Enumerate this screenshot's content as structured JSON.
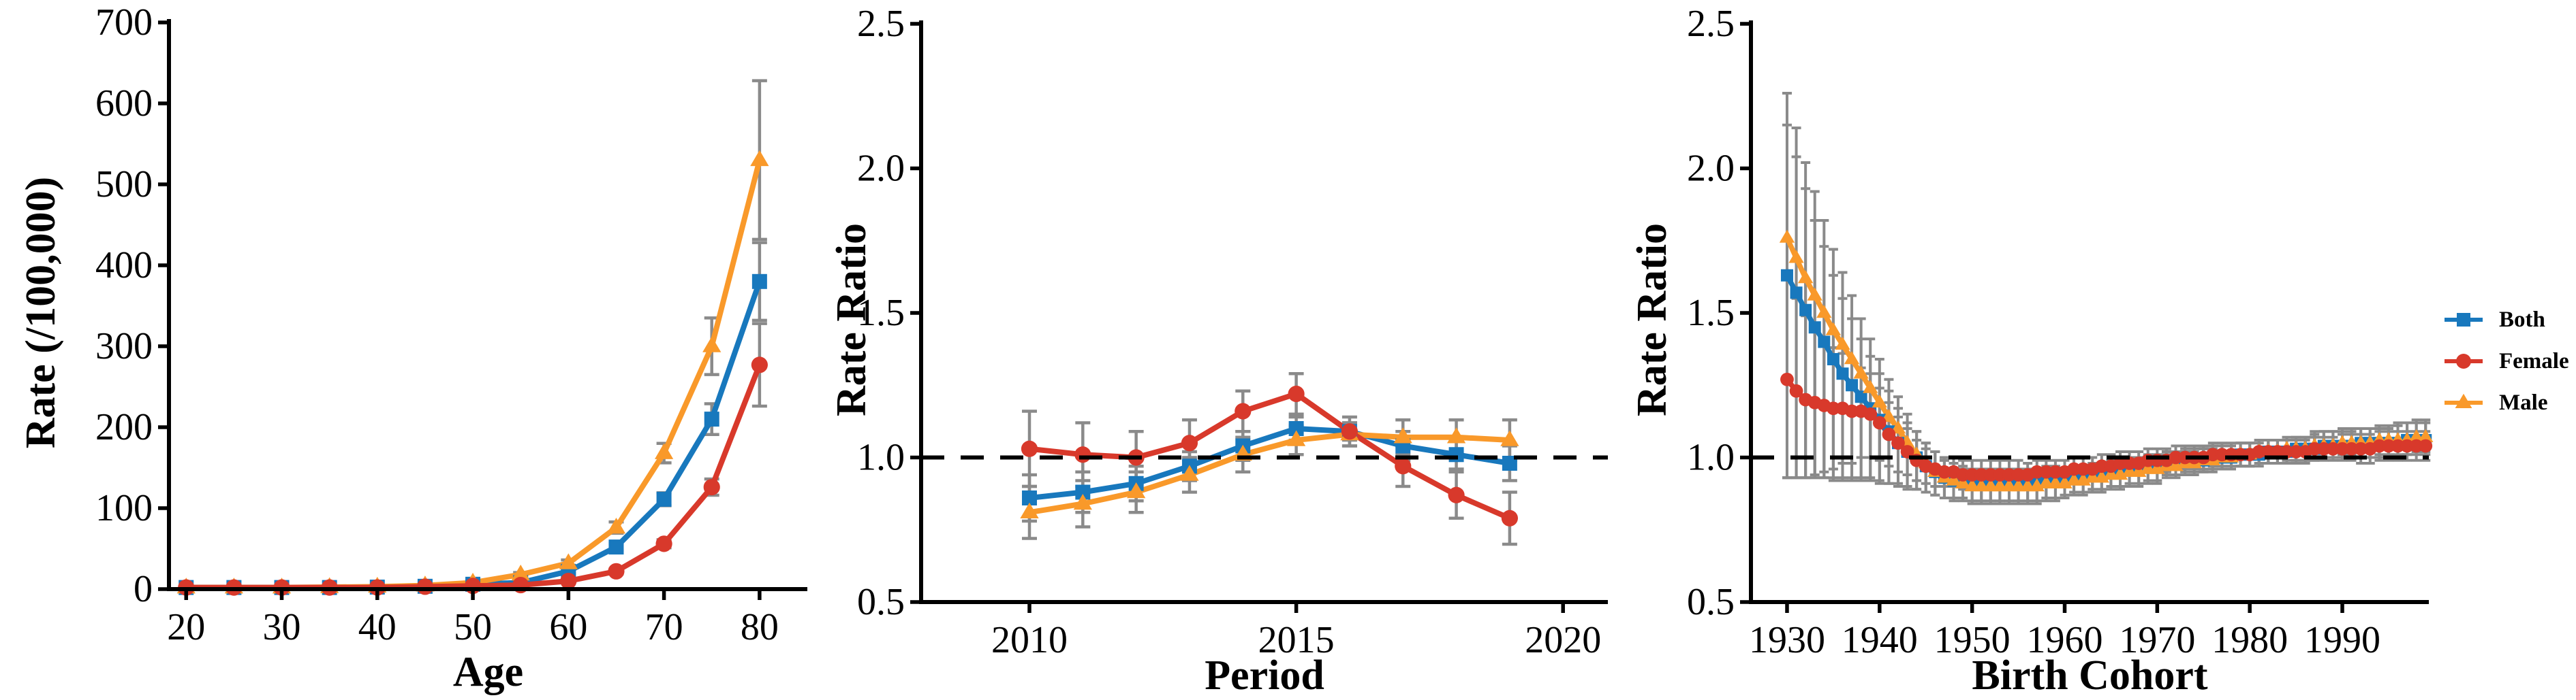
{
  "figure": {
    "kind": "age-period-cohort line figure",
    "background": "#ffffff"
  },
  "colors": {
    "both": "#1878bd",
    "female": "#d8392b",
    "male": "#f9992a",
    "error_bar": "#8a8a8a",
    "axis": "#000000",
    "refline": "#000000"
  },
  "legend": {
    "items": [
      {
        "label": "Both",
        "marker": "square",
        "color_key": "both"
      },
      {
        "label": "Female",
        "marker": "circle",
        "color_key": "female"
      },
      {
        "label": "Male",
        "marker": "triangle",
        "color_key": "male"
      }
    ]
  },
  "chart_data": [
    {
      "id": "age",
      "type": "line",
      "xlabel": "Age",
      "ylabel": "Rate (/100,000)",
      "xlim": [
        18.2,
        85.0
      ],
      "ylim": [
        0,
        700
      ],
      "xticks": [
        20,
        30,
        40,
        50,
        60,
        70,
        80
      ],
      "xtick_labels": [
        "20",
        "30",
        "40",
        "50",
        "60",
        "70",
        "80"
      ],
      "yticks": [
        0,
        100,
        200,
        300,
        400,
        500,
        600,
        700
      ],
      "ytick_labels": [
        "0",
        "100",
        "200",
        "300",
        "400",
        "500",
        "600",
        "700"
      ],
      "grid": false,
      "refline": null,
      "x": [
        20,
        25,
        30,
        35,
        40,
        45,
        50,
        55,
        60,
        65,
        70,
        75,
        80
      ],
      "series": [
        {
          "name": "Both",
          "marker": "square",
          "color_key": "both",
          "values": [
            2,
            2,
            2,
            2,
            2.5,
            3.5,
            6,
            8,
            22,
            52,
            111,
            210,
            380
          ],
          "err": [
            0.5,
            0.5,
            0.5,
            0.5,
            0.5,
            0.8,
            1,
            1.5,
            2.5,
            4,
            8,
            19,
            48
          ]
        },
        {
          "name": "Male",
          "marker": "triangle",
          "color_key": "male",
          "values": [
            2,
            2,
            2,
            2.5,
            3,
            4.5,
            8,
            18,
            32,
            76,
            168,
            300,
            530
          ],
          "err": [
            0.5,
            0.5,
            0.5,
            0.5,
            0.5,
            1,
            1.5,
            2.5,
            4,
            7,
            12,
            35,
            98
          ]
        },
        {
          "name": "Female",
          "marker": "circle",
          "color_key": "female",
          "values": [
            2,
            2,
            2,
            2,
            2,
            3,
            4,
            5,
            10,
            22,
            56,
            126,
            277
          ],
          "err": [
            0.4,
            0.4,
            0.4,
            0.4,
            0.4,
            0.6,
            0.8,
            1,
            1.5,
            3,
            5,
            10,
            51
          ]
        }
      ]
    },
    {
      "id": "period",
      "type": "line",
      "xlabel": "Period",
      "ylabel": "Rate Ratio",
      "xlim": [
        2007.97,
        2020.84
      ],
      "ylim": [
        0.5,
        2.5
      ],
      "xticks": [
        2010,
        2015,
        2020
      ],
      "xtick_labels": [
        "2010",
        "2015",
        "2020"
      ],
      "yticks": [
        0.5,
        1.0,
        1.5,
        2.0,
        2.5
      ],
      "ytick_labels": [
        "0.5",
        "1.0",
        "1.5",
        "2.0",
        "2.5"
      ],
      "grid": false,
      "refline": 1.0,
      "x": [
        2010,
        2011,
        2012,
        2013,
        2014,
        2015,
        2016,
        2017,
        2018,
        2019
      ],
      "series": [
        {
          "name": "Both",
          "marker": "square",
          "color_key": "both",
          "values": [
            0.86,
            0.88,
            0.91,
            0.97,
            1.04,
            1.1,
            1.09,
            1.04,
            1.01,
            0.98
          ],
          "err": [
            0.08,
            0.07,
            0.06,
            0.05,
            0.05,
            0.04,
            0.03,
            0.05,
            0.05,
            0.06
          ]
        },
        {
          "name": "Male",
          "marker": "triangle",
          "color_key": "male",
          "values": [
            0.81,
            0.84,
            0.88,
            0.94,
            1.01,
            1.06,
            1.08,
            1.07,
            1.07,
            1.06
          ],
          "err": [
            0.09,
            0.08,
            0.07,
            0.06,
            0.06,
            0.05,
            0.04,
            0.06,
            0.06,
            0.07
          ]
        },
        {
          "name": "Female",
          "marker": "circle",
          "color_key": "female",
          "values": [
            1.03,
            1.01,
            1.0,
            1.05,
            1.16,
            1.22,
            1.09,
            0.97,
            0.87,
            0.79
          ],
          "err": [
            0.13,
            0.11,
            0.09,
            0.08,
            0.07,
            0.07,
            0.05,
            0.07,
            0.08,
            0.09
          ]
        }
      ]
    },
    {
      "id": "cohort",
      "type": "line",
      "xlabel": "Birth Cohort",
      "ylabel": "Rate Ratio",
      "xlim": [
        1926.1,
        1999.35
      ],
      "ylim": [
        0.5,
        2.5
      ],
      "xticks": [
        1930,
        1940,
        1950,
        1960,
        1970,
        1980,
        1990
      ],
      "xtick_labels": [
        "1930",
        "1940",
        "1950",
        "1960",
        "1970",
        "1980",
        "1990"
      ],
      "yticks": [
        0.5,
        1.0,
        1.5,
        2.0,
        2.5
      ],
      "ytick_labels": [
        "0.5",
        "1.0",
        "1.5",
        "2.0",
        "2.5"
      ],
      "grid": false,
      "refline": 1.0,
      "x": [
        1930,
        1931,
        1932,
        1933,
        1934,
        1935,
        1936,
        1937,
        1938,
        1939,
        1940,
        1941,
        1942,
        1943,
        1944,
        1945,
        1946,
        1947,
        1948,
        1949,
        1950,
        1951,
        1952,
        1953,
        1954,
        1955,
        1956,
        1957,
        1958,
        1959,
        1960,
        1961,
        1962,
        1963,
        1964,
        1965,
        1966,
        1967,
        1968,
        1969,
        1970,
        1971,
        1972,
        1973,
        1974,
        1975,
        1976,
        1977,
        1978,
        1979,
        1980,
        1981,
        1982,
        1983,
        1984,
        1985,
        1986,
        1987,
        1988,
        1989,
        1990,
        1991,
        1992,
        1993,
        1994,
        1995,
        1996,
        1997,
        1998,
        1999
      ],
      "series": [
        {
          "name": "Both",
          "marker": "square",
          "color_key": "both",
          "values": [
            1.63,
            1.57,
            1.51,
            1.45,
            1.4,
            1.34,
            1.29,
            1.25,
            1.21,
            1.17,
            1.13,
            1.09,
            1.05,
            1.02,
            1.0,
            0.97,
            0.95,
            0.93,
            0.92,
            0.92,
            0.91,
            0.91,
            0.91,
            0.91,
            0.91,
            0.91,
            0.91,
            0.91,
            0.92,
            0.92,
            0.92,
            0.93,
            0.93,
            0.94,
            0.94,
            0.95,
            0.95,
            0.96,
            0.96,
            0.97,
            0.97,
            0.98,
            0.98,
            0.99,
            0.99,
            0.99,
            1.0,
            1.0,
            1.0,
            1.01,
            1.01,
            1.01,
            1.02,
            1.02,
            1.02,
            1.03,
            1.03,
            1.03,
            1.04,
            1.04,
            1.04,
            1.04,
            1.05,
            1.05,
            1.05,
            1.05,
            1.05,
            1.06,
            1.06,
            1.06
          ],
          "err_hi": [
            0.52,
            0.47,
            0.42,
            0.37,
            0.33,
            0.29,
            0.26,
            0.23,
            0.2,
            0.18,
            0.16,
            0.14,
            0.12,
            0.1,
            0.09,
            0.08,
            0.07,
            0.06,
            0.06,
            0.05,
            0.05,
            0.05,
            0.05,
            0.05,
            0.05,
            0.05,
            0.05,
            0.05,
            0.05,
            0.05,
            0.04,
            0.04,
            0.04,
            0.04,
            0.04,
            0.04,
            0.04,
            0.04,
            0.04,
            0.04,
            0.04,
            0.04,
            0.04,
            0.04,
            0.04,
            0.04,
            0.04,
            0.04,
            0.04,
            0.04,
            0.04,
            0.04,
            0.04,
            0.04,
            0.04,
            0.04,
            0.04,
            0.05,
            0.05,
            0.05,
            0.05,
            0.05,
            0.05,
            0.05,
            0.05,
            0.05,
            0.06,
            0.06,
            0.06,
            0.06
          ],
          "err_lo": [
            0.7,
            0.64,
            0.58,
            0.52,
            0.47,
            0.42,
            0.37,
            0.33,
            0.29,
            0.25,
            0.22,
            0.18,
            0.15,
            0.13,
            0.11,
            0.09,
            0.08,
            0.07,
            0.06,
            0.06,
            0.06,
            0.06,
            0.06,
            0.06,
            0.06,
            0.06,
            0.06,
            0.06,
            0.06,
            0.06,
            0.05,
            0.05,
            0.05,
            0.05,
            0.05,
            0.05,
            0.05,
            0.05,
            0.05,
            0.05,
            0.05,
            0.04,
            0.04,
            0.04,
            0.04,
            0.04,
            0.04,
            0.04,
            0.04,
            0.04,
            0.04,
            0.04,
            0.04,
            0.04,
            0.04,
            0.04,
            0.04,
            0.04,
            0.04,
            0.04,
            0.04,
            0.04,
            0.05,
            0.05,
            0.05,
            0.05,
            0.05,
            0.05,
            0.05,
            0.05
          ]
        },
        {
          "name": "Male",
          "marker": "triangle",
          "color_key": "male",
          "values": [
            1.76,
            1.69,
            1.62,
            1.56,
            1.5,
            1.44,
            1.39,
            1.34,
            1.29,
            1.24,
            1.19,
            1.14,
            1.1,
            1.05,
            1.01,
            0.98,
            0.95,
            0.93,
            0.92,
            0.91,
            0.9,
            0.9,
            0.9,
            0.9,
            0.9,
            0.9,
            0.9,
            0.9,
            0.91,
            0.91,
            0.91,
            0.92,
            0.92,
            0.93,
            0.93,
            0.94,
            0.94,
            0.95,
            0.95,
            0.96,
            0.96,
            0.97,
            0.97,
            0.98,
            0.98,
            0.99,
            0.99,
            1.0,
            1.0,
            1.01,
            1.01,
            1.02,
            1.02,
            1.02,
            1.03,
            1.03,
            1.03,
            1.04,
            1.04,
            1.04,
            1.05,
            1.05,
            1.05,
            1.05,
            1.06,
            1.06,
            1.06,
            1.06,
            1.07,
            1.07
          ],
          "err_hi": [
            0.5,
            0.45,
            0.4,
            0.36,
            0.32,
            0.28,
            0.25,
            0.22,
            0.19,
            0.17,
            0.15,
            0.13,
            0.11,
            0.1,
            0.08,
            0.07,
            0.07,
            0.06,
            0.06,
            0.05,
            0.05,
            0.05,
            0.05,
            0.05,
            0.05,
            0.05,
            0.05,
            0.05,
            0.05,
            0.05,
            0.04,
            0.04,
            0.04,
            0.04,
            0.04,
            0.04,
            0.04,
            0.04,
            0.04,
            0.04,
            0.04,
            0.04,
            0.04,
            0.04,
            0.04,
            0.04,
            0.04,
            0.04,
            0.04,
            0.04,
            0.04,
            0.04,
            0.04,
            0.04,
            0.04,
            0.04,
            0.04,
            0.05,
            0.05,
            0.05,
            0.05,
            0.05,
            0.05,
            0.05,
            0.05,
            0.05,
            0.06,
            0.06,
            0.06,
            0.06
          ],
          "err_lo": [
            0.83,
            0.76,
            0.69,
            0.63,
            0.57,
            0.51,
            0.46,
            0.41,
            0.36,
            0.31,
            0.27,
            0.23,
            0.19,
            0.15,
            0.12,
            0.1,
            0.08,
            0.07,
            0.07,
            0.06,
            0.06,
            0.06,
            0.06,
            0.06,
            0.06,
            0.06,
            0.06,
            0.06,
            0.06,
            0.06,
            0.05,
            0.05,
            0.05,
            0.05,
            0.05,
            0.05,
            0.05,
            0.05,
            0.05,
            0.05,
            0.05,
            0.04,
            0.04,
            0.04,
            0.04,
            0.04,
            0.04,
            0.04,
            0.04,
            0.04,
            0.04,
            0.04,
            0.04,
            0.04,
            0.04,
            0.04,
            0.04,
            0.04,
            0.04,
            0.04,
            0.04,
            0.04,
            0.05,
            0.05,
            0.05,
            0.05,
            0.05,
            0.05,
            0.05,
            0.05
          ]
        },
        {
          "name": "Female",
          "marker": "circle",
          "color_key": "female",
          "values": [
            1.27,
            1.23,
            1.2,
            1.19,
            1.18,
            1.17,
            1.17,
            1.16,
            1.16,
            1.15,
            1.12,
            1.08,
            1.05,
            1.02,
            0.99,
            0.97,
            0.96,
            0.95,
            0.95,
            0.94,
            0.94,
            0.94,
            0.94,
            0.94,
            0.94,
            0.94,
            0.94,
            0.95,
            0.95,
            0.95,
            0.95,
            0.96,
            0.96,
            0.96,
            0.97,
            0.97,
            0.98,
            0.98,
            0.98,
            0.99,
            0.99,
            0.99,
            1.0,
            1.0,
            1.0,
            1.0,
            1.01,
            1.01,
            1.01,
            1.01,
            1.01,
            1.02,
            1.02,
            1.02,
            1.02,
            1.02,
            1.02,
            1.03,
            1.03,
            1.03,
            1.03,
            1.03,
            1.03,
            1.03,
            1.04,
            1.04,
            1.04,
            1.04,
            1.04,
            1.04
          ],
          "err_hi": [
            0.36,
            0.32,
            0.29,
            0.26,
            0.23,
            0.21,
            0.19,
            0.17,
            0.15,
            0.14,
            0.12,
            0.11,
            0.09,
            0.08,
            0.07,
            0.06,
            0.06,
            0.05,
            0.05,
            0.05,
            0.05,
            0.05,
            0.05,
            0.05,
            0.05,
            0.05,
            0.04,
            0.04,
            0.04,
            0.04,
            0.04,
            0.04,
            0.04,
            0.04,
            0.04,
            0.04,
            0.04,
            0.04,
            0.04,
            0.04,
            0.04,
            0.04,
            0.04,
            0.04,
            0.04,
            0.04,
            0.04,
            0.04,
            0.04,
            0.04,
            0.04,
            0.04,
            0.04,
            0.04,
            0.04,
            0.04,
            0.04,
            0.04,
            0.04,
            0.04,
            0.05,
            0.05,
            0.05,
            0.05,
            0.05,
            0.05,
            0.05,
            0.05,
            0.05,
            0.05
          ],
          "err_lo": [
            0.34,
            0.3,
            0.27,
            0.25,
            0.23,
            0.21,
            0.19,
            0.18,
            0.16,
            0.15,
            0.13,
            0.11,
            0.1,
            0.08,
            0.07,
            0.06,
            0.06,
            0.05,
            0.05,
            0.05,
            0.05,
            0.05,
            0.05,
            0.05,
            0.05,
            0.05,
            0.05,
            0.05,
            0.05,
            0.05,
            0.04,
            0.04,
            0.04,
            0.04,
            0.04,
            0.04,
            0.04,
            0.04,
            0.04,
            0.04,
            0.04,
            0.04,
            0.04,
            0.04,
            0.04,
            0.04,
            0.04,
            0.04,
            0.04,
            0.04,
            0.04,
            0.04,
            0.04,
            0.04,
            0.04,
            0.04,
            0.04,
            0.04,
            0.04,
            0.04,
            0.04,
            0.04,
            0.05,
            0.05,
            0.05,
            0.05,
            0.05,
            0.05,
            0.05,
            0.05
          ]
        }
      ]
    }
  ]
}
